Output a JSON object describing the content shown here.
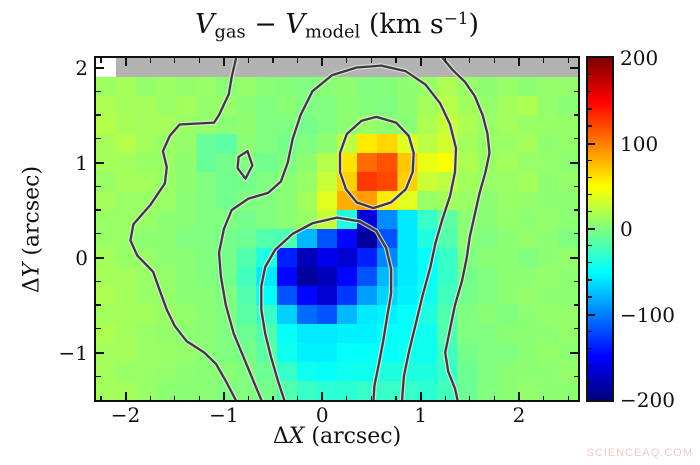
{
  "watermark": {
    "text": "SCIENCEAQ.COM",
    "color": "#f2c9c9"
  },
  "chart_data": {
    "type": "heatmap",
    "title": {
      "v1": "V",
      "sub1": "gas",
      "minus": " − ",
      "v2": "V",
      "sub2": "model",
      "units_open": " (km s",
      "exp": "−1",
      "units_close": ")"
    },
    "xlabel": {
      "delta": "Δ",
      "var": "X",
      "units": " (arcsec)"
    },
    "ylabel": {
      "delta": "Δ",
      "var": "Y",
      "units": " (arcsec)"
    },
    "x_range": [
      -2.3,
      2.6
    ],
    "y_range": [
      -1.5,
      2.1
    ],
    "xticks": [
      -2,
      -1,
      0,
      1,
      2
    ],
    "yticks": [
      -1,
      0,
      1,
      2
    ],
    "minor_tick_step": 0.25,
    "value_range": [
      -200,
      200
    ],
    "colormap": "jet",
    "missing_color": "#b3b3b3",
    "grid_on": false,
    "legend": "colorbar-right",
    "colorbar": {
      "ticks": [
        200,
        100,
        0,
        -100,
        -200
      ],
      "minor_step": 20
    },
    "grid": {
      "ncols": 24,
      "nrows": 18,
      "x_start": -2.3,
      "x_step": 0.2042,
      "y_start": 2.1,
      "y_step": -0.2,
      "values": [
        [
          null,
          null,
          null,
          null,
          null,
          null,
          null,
          null,
          null,
          null,
          null,
          null,
          null,
          null,
          null,
          null,
          null,
          null,
          null,
          null,
          null,
          null,
          null,
          null
        ],
        [
          12,
          15,
          8,
          12,
          8,
          10,
          4,
          8,
          4,
          2,
          0,
          4,
          6,
          0,
          2,
          6,
          10,
          18,
          10,
          6,
          10,
          5,
          8,
          8
        ],
        [
          18,
          14,
          15,
          10,
          14,
          8,
          10,
          4,
          0,
          4,
          0,
          0,
          5,
          2,
          0,
          6,
          14,
          22,
          14,
          8,
          14,
          18,
          8,
          4
        ],
        [
          20,
          16,
          14,
          15,
          10,
          8,
          4,
          6,
          0,
          0,
          -4,
          0,
          5,
          10,
          6,
          4,
          18,
          28,
          18,
          10,
          14,
          10,
          10,
          8
        ],
        [
          15,
          20,
          14,
          10,
          8,
          -10,
          -14,
          4,
          0,
          -4,
          0,
          6,
          24,
          58,
          66,
          38,
          24,
          32,
          14,
          10,
          10,
          14,
          6,
          8
        ],
        [
          15,
          14,
          10,
          10,
          6,
          -10,
          -4,
          0,
          -6,
          0,
          6,
          20,
          60,
          108,
          118,
          72,
          42,
          48,
          18,
          10,
          14,
          10,
          8,
          5
        ],
        [
          10,
          15,
          14,
          10,
          6,
          0,
          -6,
          -4,
          0,
          4,
          10,
          28,
          68,
          128,
          122,
          68,
          30,
          24,
          14,
          10,
          10,
          14,
          6,
          8
        ],
        [
          14,
          10,
          10,
          10,
          4,
          0,
          -6,
          0,
          0,
          4,
          14,
          38,
          82,
          88,
          58,
          38,
          10,
          14,
          10,
          5,
          10,
          8,
          5,
          5
        ],
        [
          10,
          10,
          10,
          5,
          4,
          0,
          0,
          -4,
          0,
          4,
          10,
          28,
          -38,
          -165,
          -95,
          -58,
          -28,
          -14,
          5,
          4,
          8,
          5,
          8,
          5
        ],
        [
          10,
          10,
          5,
          5,
          0,
          0,
          -4,
          -8,
          -18,
          -20,
          -78,
          -118,
          -148,
          -188,
          -118,
          -58,
          -38,
          -18,
          4,
          0,
          5,
          8,
          5,
          0
        ],
        [
          14,
          10,
          10,
          5,
          4,
          0,
          -4,
          -18,
          -38,
          -138,
          -178,
          -158,
          -168,
          -138,
          -98,
          -58,
          -48,
          -28,
          0,
          4,
          5,
          0,
          5,
          8
        ],
        [
          15,
          14,
          10,
          8,
          4,
          0,
          -4,
          -24,
          -58,
          -148,
          -188,
          -178,
          -148,
          -118,
          -78,
          -58,
          -48,
          -28,
          -4,
          0,
          5,
          5,
          8,
          5
        ],
        [
          18,
          14,
          10,
          8,
          4,
          4,
          0,
          -18,
          -48,
          -118,
          -148,
          -168,
          -128,
          -88,
          -68,
          -55,
          -45,
          -24,
          -4,
          0,
          5,
          8,
          5,
          5
        ],
        [
          14,
          14,
          14,
          10,
          8,
          4,
          0,
          -14,
          -28,
          -68,
          -108,
          -118,
          -78,
          -58,
          -55,
          -48,
          -38,
          -18,
          0,
          4,
          0,
          5,
          8,
          8
        ],
        [
          18,
          14,
          10,
          8,
          5,
          4,
          0,
          -8,
          -18,
          -48,
          -58,
          -58,
          -55,
          -55,
          -48,
          -48,
          -44,
          -18,
          0,
          0,
          4,
          5,
          5,
          8
        ],
        [
          14,
          14,
          10,
          10,
          8,
          4,
          0,
          -4,
          -14,
          -44,
          -55,
          -55,
          -48,
          -48,
          -48,
          -44,
          -44,
          -24,
          -4,
          0,
          0,
          5,
          8,
          5
        ],
        [
          14,
          10,
          10,
          8,
          5,
          4,
          4,
          0,
          -8,
          -28,
          -44,
          -48,
          -44,
          -44,
          -38,
          -38,
          -38,
          -28,
          -8,
          0,
          4,
          5,
          5,
          8
        ],
        [
          14,
          14,
          10,
          5,
          4,
          4,
          0,
          0,
          -4,
          -18,
          -28,
          -33,
          -33,
          -28,
          -28,
          -28,
          -33,
          -24,
          -8,
          0,
          4,
          8,
          5,
          5
        ]
      ]
    },
    "artifacts": [
      {
        "row": 0,
        "col": 0,
        "color": "#ffffff"
      }
    ],
    "contours": {
      "line_color": "#3c3c3c",
      "halo_color": "#e6e6e6",
      "paths": [
        {
          "name": "outer-left",
          "closed": false,
          "points": [
            [
              -0.87,
              2.13
            ],
            [
              -0.92,
              1.9
            ],
            [
              -0.95,
              1.72
            ],
            [
              -1.05,
              1.5
            ],
            [
              -1.1,
              1.42
            ],
            [
              -1.45,
              1.4
            ],
            [
              -1.55,
              1.28
            ],
            [
              -1.62,
              1.12
            ],
            [
              -1.58,
              0.95
            ],
            [
              -1.6,
              0.78
            ],
            [
              -1.75,
              0.55
            ],
            [
              -1.92,
              0.35
            ],
            [
              -1.95,
              0.18
            ],
            [
              -1.88,
              0.02
            ],
            [
              -1.72,
              -0.15
            ],
            [
              -1.65,
              -0.35
            ],
            [
              -1.58,
              -0.55
            ],
            [
              -1.5,
              -0.72
            ],
            [
              -1.38,
              -0.88
            ],
            [
              -1.2,
              -1.0
            ],
            [
              -1.08,
              -1.12
            ],
            [
              -0.98,
              -1.3
            ],
            [
              -0.87,
              -1.52
            ]
          ]
        },
        {
          "name": "outer-right",
          "closed": false,
          "points": [
            [
              1.2,
              2.13
            ],
            [
              1.32,
              1.98
            ],
            [
              1.45,
              1.85
            ],
            [
              1.55,
              1.7
            ],
            [
              1.63,
              1.5
            ],
            [
              1.68,
              1.3
            ],
            [
              1.7,
              1.1
            ],
            [
              1.66,
              0.9
            ],
            [
              1.6,
              0.68
            ],
            [
              1.55,
              0.45
            ],
            [
              1.5,
              0.22
            ],
            [
              1.47,
              0.0
            ],
            [
              1.42,
              -0.25
            ],
            [
              1.35,
              -0.5
            ],
            [
              1.3,
              -0.75
            ],
            [
              1.25,
              -1.0
            ],
            [
              1.28,
              -1.2
            ],
            [
              1.35,
              -1.38
            ],
            [
              1.38,
              -1.52
            ]
          ]
        },
        {
          "name": "middle",
          "closed": false,
          "points": [
            [
              -0.61,
              -1.52
            ],
            [
              -0.7,
              -1.3
            ],
            [
              -0.8,
              -1.05
            ],
            [
              -0.9,
              -0.8
            ],
            [
              -0.98,
              -0.5
            ],
            [
              -1.03,
              -0.2
            ],
            [
              -1.05,
              0.05
            ],
            [
              -1.0,
              0.3
            ],
            [
              -0.92,
              0.5
            ],
            [
              -0.75,
              0.62
            ],
            [
              -0.55,
              0.68
            ],
            [
              -0.42,
              0.8
            ],
            [
              -0.35,
              1.0
            ],
            [
              -0.3,
              1.25
            ],
            [
              -0.22,
              1.5
            ],
            [
              -0.1,
              1.75
            ],
            [
              0.1,
              1.92
            ],
            [
              0.35,
              2.0
            ],
            [
              0.6,
              2.02
            ],
            [
              0.85,
              1.96
            ],
            [
              1.05,
              1.82
            ],
            [
              1.2,
              1.62
            ],
            [
              1.3,
              1.4
            ],
            [
              1.36,
              1.15
            ],
            [
              1.35,
              0.9
            ],
            [
              1.3,
              0.65
            ],
            [
              1.22,
              0.4
            ],
            [
              1.15,
              0.15
            ],
            [
              1.1,
              -0.1
            ],
            [
              1.02,
              -0.4
            ],
            [
              0.95,
              -0.7
            ],
            [
              0.88,
              -1.0
            ],
            [
              0.83,
              -1.25
            ],
            [
              0.81,
              -1.52
            ]
          ]
        },
        {
          "name": "inner-blue",
          "closed": false,
          "points": [
            [
              -0.38,
              -1.52
            ],
            [
              -0.45,
              -1.3
            ],
            [
              -0.52,
              -1.05
            ],
            [
              -0.58,
              -0.8
            ],
            [
              -0.62,
              -0.55
            ],
            [
              -0.62,
              -0.3
            ],
            [
              -0.58,
              -0.1
            ],
            [
              -0.48,
              0.08
            ],
            [
              -0.3,
              0.25
            ],
            [
              -0.1,
              0.36
            ],
            [
              0.15,
              0.42
            ],
            [
              0.38,
              0.38
            ],
            [
              0.55,
              0.28
            ],
            [
              0.65,
              0.1
            ],
            [
              0.7,
              -0.12
            ],
            [
              0.7,
              -0.38
            ],
            [
              0.66,
              -0.62
            ],
            [
              0.62,
              -0.88
            ],
            [
              0.57,
              -1.15
            ],
            [
              0.53,
              -1.35
            ],
            [
              0.52,
              -1.52
            ]
          ]
        },
        {
          "name": "inner-orange",
          "closed": true,
          "points": [
            [
              0.55,
              1.48
            ],
            [
              0.75,
              1.42
            ],
            [
              0.88,
              1.28
            ],
            [
              0.93,
              1.1
            ],
            [
              0.92,
              0.9
            ],
            [
              0.85,
              0.72
            ],
            [
              0.7,
              0.58
            ],
            [
              0.52,
              0.52
            ],
            [
              0.35,
              0.58
            ],
            [
              0.24,
              0.72
            ],
            [
              0.18,
              0.9
            ],
            [
              0.18,
              1.1
            ],
            [
              0.25,
              1.3
            ],
            [
              0.4,
              1.44
            ]
          ]
        },
        {
          "name": "small-loop",
          "closed": true,
          "points": [
            [
              -0.76,
              1.12
            ],
            [
              -0.71,
              0.97
            ],
            [
              -0.78,
              0.83
            ],
            [
              -0.86,
              0.94
            ],
            [
              -0.85,
              1.06
            ]
          ]
        }
      ]
    }
  }
}
